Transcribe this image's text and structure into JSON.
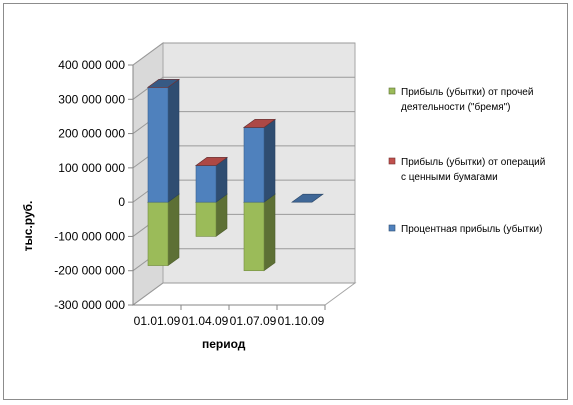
{
  "chart_data": {
    "type": "bar",
    "stacked": true,
    "style": "3d",
    "categories": [
      "01.01.09",
      "01.04.09",
      "01.07.09",
      "01.10.09"
    ],
    "series": [
      {
        "name": "Прибыль (убытки) от прочей деятельности (\"бремя\")",
        "legend_lines": [
          "Прибыль (убытки) от прочей",
          "деятельности (\"бремя\")"
        ],
        "color": "#9bbb59",
        "values": [
          -185000000,
          -100000000,
          -200000000,
          0
        ]
      },
      {
        "name": "Прибыль (убытки) от операций с ценными бумагами",
        "legend_lines": [
          "Прибыль (убытки) от операций",
          "с ценными бумагами"
        ],
        "color": "#c0504d",
        "values": [
          0,
          0,
          0,
          0
        ]
      },
      {
        "name": "Процентная прибыль (убытки)",
        "legend_lines": [
          "Процентная прибыль (убытки)"
        ],
        "color": "#4f81bd",
        "values": [
          335000000,
          107000000,
          218000000,
          0
        ]
      }
    ],
    "ylim": [
      -300000000,
      400000000
    ],
    "yticks": [
      -300000000,
      -200000000,
      -100000000,
      0,
      100000000,
      200000000,
      300000000,
      400000000
    ],
    "ytick_labels": [
      "-300 000 000",
      "-200 000 000",
      "-100 000 000",
      "0",
      "100 000 000",
      "200 000 000",
      "300 000 000",
      "400 000 000"
    ],
    "xlabel": "период",
    "ylabel": "тыс.руб.",
    "grid": true,
    "legend_position": "right"
  }
}
